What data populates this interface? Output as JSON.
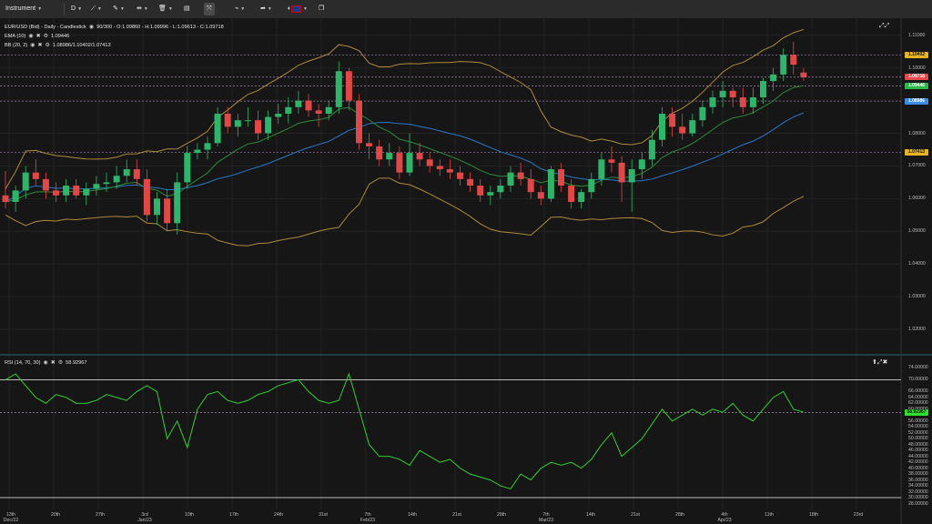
{
  "toolbar": {
    "instrument_label": "Instrument",
    "period_label": "D",
    "icons": [
      "line-tool-icon",
      "ruler-icon",
      "crosshair-icon",
      "trash-icon",
      "layout-icon",
      "expand-icon",
      "draw-icon",
      "share-icon",
      "uk-flag-icon",
      "popout-icon"
    ]
  },
  "legends": {
    "main": "EUR/USD (Bid) - Daily - Candlestick",
    "main_stats": "90/300 - O:1.09860 - H:1.09996 - L:1.09613 - C:1.09718",
    "ema": "EMA (10)",
    "ema_value": "1.09446",
    "bb": "BB (20, 2)",
    "bb_value": "1.08986/1.10402/1.07413",
    "rsi": "RSI (14, 70, 30)",
    "rsi_value": "58.92967"
  },
  "price_axis": [
    "1.11000",
    "1.10000",
    "1.09000",
    "1.08000",
    "1.07000",
    "1.06000",
    "1.05000",
    "1.04000",
    "1.03000",
    "1.02000"
  ],
  "price_tags": [
    {
      "text": "1.10402",
      "color": "#e6b422"
    },
    {
      "text": "1.09718",
      "color": "#e64a4a"
    },
    {
      "text": "1.09446",
      "color": "#2db84a"
    },
    {
      "text": "1.08986",
      "color": "#3a8ee6"
    },
    {
      "text": "1.07413",
      "color": "#e6b422"
    }
  ],
  "rsi_axis": [
    "74.00000",
    "70.00000",
    "66.00000",
    "64.00000",
    "62.00000",
    "60.00000",
    "58.00000",
    "56.00000",
    "54.00000",
    "52.00000",
    "50.00000",
    "48.00000",
    "46.00000",
    "44.00000",
    "42.00000",
    "40.00000",
    "38.00000",
    "36.00000",
    "34.00000",
    "32.00000",
    "30.00000",
    "28.00000"
  ],
  "rsi_tag": {
    "text": "58.92967",
    "color": "#2fe02f"
  },
  "x_axis": [
    {
      "text": "13th\nDec/22"
    },
    {
      "text": "20th"
    },
    {
      "text": "27th"
    },
    {
      "text": "3rd\nJan/23"
    },
    {
      "text": "10th"
    },
    {
      "text": "17th"
    },
    {
      "text": "24th"
    },
    {
      "text": "31st"
    },
    {
      "text": "7th\nFeb/23"
    },
    {
      "text": "14th"
    },
    {
      "text": "21st"
    },
    {
      "text": "28th"
    },
    {
      "text": "7th\nMar/23"
    },
    {
      "text": "14th"
    },
    {
      "text": "21st"
    },
    {
      "text": "28th"
    },
    {
      "text": "4th\nApr/23"
    },
    {
      "text": "11th"
    },
    {
      "text": "18th"
    },
    {
      "text": "23rd"
    }
  ],
  "chart_data": {
    "type": "candlestick",
    "candles": [
      [
        1.061,
        1.0685,
        1.057,
        1.059
      ],
      [
        1.059,
        1.064,
        1.056,
        1.0625
      ],
      [
        1.0625,
        1.07,
        1.06,
        1.068
      ],
      [
        1.068,
        1.072,
        1.064,
        1.066
      ],
      [
        1.066,
        1.068,
        1.06,
        1.0625
      ],
      [
        1.0625,
        1.065,
        1.059,
        1.061
      ],
      [
        1.061,
        1.066,
        1.059,
        1.064
      ],
      [
        1.064,
        1.066,
        1.06,
        1.061
      ],
      [
        1.061,
        1.065,
        1.058,
        1.063
      ],
      [
        1.063,
        1.067,
        1.061,
        1.0645
      ],
      [
        1.0645,
        1.068,
        1.062,
        1.065
      ],
      [
        1.065,
        1.07,
        1.063,
        1.067
      ],
      [
        1.067,
        1.072,
        1.065,
        1.069
      ],
      [
        1.069,
        1.072,
        1.064,
        1.066
      ],
      [
        1.066,
        1.069,
        1.053,
        1.055
      ],
      [
        1.055,
        1.062,
        1.052,
        1.06
      ],
      [
        1.06,
        1.063,
        1.05,
        1.0525
      ],
      [
        1.0525,
        1.068,
        1.049,
        1.065
      ],
      [
        1.065,
        1.076,
        1.063,
        1.074
      ],
      [
        1.074,
        1.077,
        1.072,
        1.075
      ],
      [
        1.075,
        1.079,
        1.072,
        1.077
      ],
      [
        1.077,
        1.088,
        1.076,
        1.086
      ],
      [
        1.086,
        1.088,
        1.08,
        1.082
      ],
      [
        1.082,
        1.086,
        1.079,
        1.084
      ],
      [
        1.084,
        1.088,
        1.082,
        1.084
      ],
      [
        1.084,
        1.087,
        1.078,
        1.08
      ],
      [
        1.08,
        1.087,
        1.078,
        1.085
      ],
      [
        1.085,
        1.089,
        1.083,
        1.086
      ],
      [
        1.086,
        1.091,
        1.083,
        1.088
      ],
      [
        1.088,
        1.093,
        1.086,
        1.09
      ],
      [
        1.09,
        1.092,
        1.085,
        1.087
      ],
      [
        1.087,
        1.089,
        1.082,
        1.086
      ],
      [
        1.086,
        1.09,
        1.084,
        1.088
      ],
      [
        1.088,
        1.102,
        1.086,
        1.099
      ],
      [
        1.099,
        1.1,
        1.087,
        1.09
      ],
      [
        1.09,
        1.092,
        1.075,
        1.077
      ],
      [
        1.077,
        1.08,
        1.072,
        1.076
      ],
      [
        1.076,
        1.078,
        1.07,
        1.072
      ],
      [
        1.072,
        1.077,
        1.07,
        1.074
      ],
      [
        1.074,
        1.076,
        1.066,
        1.068
      ],
      [
        1.068,
        1.08,
        1.067,
        1.074
      ],
      [
        1.074,
        1.077,
        1.07,
        1.072
      ],
      [
        1.072,
        1.074,
        1.068,
        1.07
      ],
      [
        1.07,
        1.072,
        1.067,
        1.069
      ],
      [
        1.069,
        1.072,
        1.066,
        1.068
      ],
      [
        1.068,
        1.07,
        1.064,
        1.066
      ],
      [
        1.066,
        1.068,
        1.062,
        1.064
      ],
      [
        1.064,
        1.066,
        1.059,
        1.061
      ],
      [
        1.061,
        1.064,
        1.058,
        1.062
      ],
      [
        1.062,
        1.066,
        1.06,
        1.064
      ],
      [
        1.064,
        1.07,
        1.062,
        1.068
      ],
      [
        1.068,
        1.071,
        1.064,
        1.066
      ],
      [
        1.066,
        1.069,
        1.06,
        1.062
      ],
      [
        1.062,
        1.064,
        1.058,
        1.06
      ],
      [
        1.06,
        1.07,
        1.059,
        1.069
      ],
      [
        1.069,
        1.071,
        1.062,
        1.064
      ],
      [
        1.064,
        1.066,
        1.057,
        1.059
      ],
      [
        1.059,
        1.063,
        1.057,
        1.062
      ],
      [
        1.062,
        1.068,
        1.06,
        1.066
      ],
      [
        1.066,
        1.074,
        1.064,
        1.072
      ],
      [
        1.072,
        1.076,
        1.068,
        1.071
      ],
      [
        1.071,
        1.073,
        1.059,
        1.065
      ],
      [
        1.065,
        1.072,
        1.056,
        1.069
      ],
      [
        1.069,
        1.074,
        1.066,
        1.072
      ],
      [
        1.072,
        1.081,
        1.07,
        1.078
      ],
      [
        1.078,
        1.088,
        1.076,
        1.086
      ],
      [
        1.086,
        1.088,
        1.079,
        1.082
      ],
      [
        1.082,
        1.086,
        1.078,
        1.08
      ],
      [
        1.08,
        1.086,
        1.079,
        1.084
      ],
      [
        1.084,
        1.09,
        1.082,
        1.088
      ],
      [
        1.088,
        1.093,
        1.086,
        1.091
      ],
      [
        1.091,
        1.096,
        1.088,
        1.093
      ],
      [
        1.093,
        1.094,
        1.088,
        1.091
      ],
      [
        1.091,
        1.094,
        1.086,
        1.088
      ],
      [
        1.088,
        1.094,
        1.086,
        1.091
      ],
      [
        1.091,
        1.097,
        1.089,
        1.096
      ],
      [
        1.096,
        1.1,
        1.093,
        1.098
      ],
      [
        1.098,
        1.106,
        1.096,
        1.104
      ],
      [
        1.104,
        1.108,
        1.098,
        1.101
      ],
      [
        1.0986,
        1.0999,
        1.0961,
        1.0972
      ]
    ],
    "rsi": [
      70,
      72,
      68,
      64,
      62,
      65,
      64,
      62,
      62,
      63,
      65,
      64,
      63,
      66,
      68,
      66,
      50,
      56,
      47,
      60,
      65,
      66,
      63,
      62,
      63,
      65,
      66,
      68,
      69,
      70,
      66,
      63,
      62,
      63,
      72,
      60,
      48,
      44,
      44,
      43,
      41,
      46,
      44,
      42,
      43,
      40,
      38,
      37,
      36,
      34,
      33,
      38,
      36,
      40,
      42,
      41,
      42,
      40,
      43,
      48,
      52,
      44,
      47,
      50,
      55,
      60,
      56,
      58,
      60,
      58,
      60,
      59,
      62,
      58,
      56,
      60,
      64,
      66,
      60,
      59
    ],
    "ylim": [
      1.015,
      1.113
    ]
  }
}
